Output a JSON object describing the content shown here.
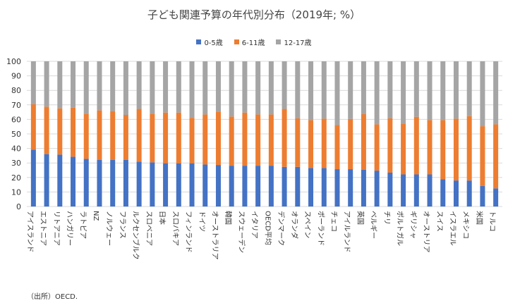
{
  "chart_data": {
    "type": "bar",
    "stacked": true,
    "title": "子ども関連予算の年代別分布（2019年; %）",
    "xlabel": "",
    "ylabel": "",
    "ylim": [
      0,
      100
    ],
    "yticks": [
      0,
      10,
      20,
      30,
      40,
      50,
      60,
      70,
      80,
      90,
      100
    ],
    "grid": true,
    "legend_position": "top",
    "categories": [
      "アイスランド",
      "エストニア",
      "リトアニア",
      "ハンガリー",
      "ラトビア",
      "NZ",
      "ノルウェー",
      "フランス",
      "ルクセンブルク",
      "スロベニア",
      "日本",
      "スロバキア",
      "フィンランド",
      "ドイツ",
      "オーストラリア",
      "韓国",
      "スウェーデン",
      "イタリア",
      "OECD平均",
      "デンマーク",
      "オランダ",
      "スペイン",
      "ポーランド",
      "チェコ",
      "アイルランド",
      "英国",
      "ベルギー",
      "チリ",
      "ポルトガル",
      "ギリシャ",
      "オーストリア",
      "スイス",
      "イスラエル",
      "メキシコ",
      "米国",
      "トルコ"
    ],
    "series": [
      {
        "name": "0-5歳",
        "color": "#4472c4",
        "values": [
          39.2,
          36.1,
          35.8,
          34.3,
          32.8,
          32.2,
          32.2,
          32.2,
          30.9,
          30.4,
          29.8,
          29.8,
          29.8,
          28.9,
          28.6,
          28.1,
          28.1,
          28.1,
          28.1,
          27.3,
          27.3,
          26.5,
          26.5,
          25.7,
          25.7,
          25.4,
          24.7,
          23.3,
          22.1,
          22.1,
          22.1,
          18.7,
          17.9,
          17.9,
          14.1,
          12.5
        ]
      },
      {
        "name": "6-11歳",
        "color": "#ed7d31",
        "values": [
          31.2,
          32.7,
          31.8,
          33.8,
          31.1,
          34.0,
          33.5,
          30.9,
          36.3,
          33.5,
          34.9,
          34.9,
          31.3,
          34.5,
          36.8,
          33.9,
          36.6,
          35.3,
          35.3,
          39.9,
          33.4,
          33.0,
          34.0,
          30.4,
          34.6,
          38.2,
          31.9,
          37.4,
          35.0,
          39.7,
          37.4,
          40.8,
          42.6,
          44.4,
          41.2,
          44.1
        ]
      },
      {
        "name": "12-17歳",
        "color": "#a5a5a5",
        "values": [
          29.6,
          31.2,
          32.4,
          31.9,
          36.1,
          33.8,
          34.3,
          36.9,
          32.8,
          36.1,
          35.3,
          35.3,
          38.9,
          36.6,
          34.6,
          38.0,
          35.3,
          36.6,
          36.6,
          32.8,
          39.3,
          40.5,
          39.5,
          43.9,
          39.7,
          36.4,
          43.4,
          39.3,
          42.9,
          38.2,
          40.5,
          40.5,
          39.5,
          37.7,
          44.7,
          43.4
        ]
      }
    ]
  },
  "source": "（出所）OECD."
}
